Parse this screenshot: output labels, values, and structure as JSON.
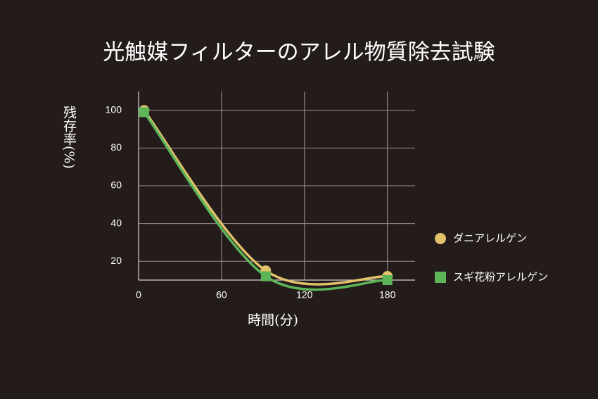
{
  "chart_data": {
    "type": "line",
    "title": "光触媒フィルターのアレル物質除去試験",
    "x_label": "時間(分)",
    "y_label": "残存率(%)",
    "x": [
      4,
      92,
      180
    ],
    "series": [
      {
        "name": "ダニアレルゲン",
        "color": "#e2c16b",
        "marker": "circle",
        "values": [
          100,
          15,
          12
        ]
      },
      {
        "name": "スギ花粉アレルゲン",
        "color": "#5db55a",
        "marker": "square",
        "values": [
          99,
          12,
          10
        ]
      }
    ],
    "xlim": [
      0,
      200
    ],
    "xticks": [
      0,
      60,
      120,
      180
    ],
    "ylim": [
      10,
      110
    ],
    "yticks": [
      20,
      40,
      60,
      80,
      100
    ],
    "grid": true,
    "legend": "right"
  }
}
